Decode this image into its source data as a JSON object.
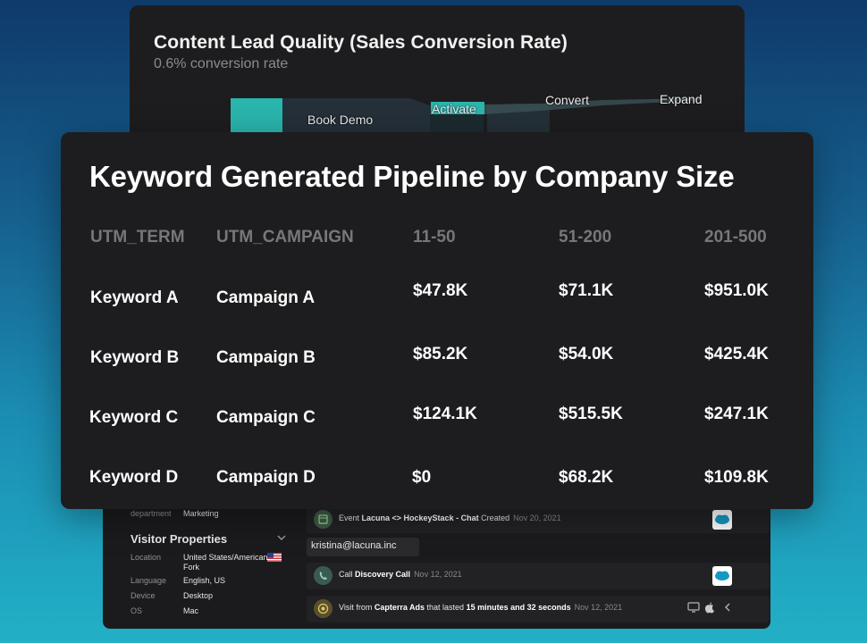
{
  "funnel_card": {
    "title": "Content Lead Quality (Sales Conversion Rate)",
    "subtitle": "0.6% conversion rate",
    "stages": [
      "Book Demo",
      "Activate",
      "Convert",
      "Expand"
    ],
    "accent_color": "#2ab5ad"
  },
  "table_card": {
    "title": "Keyword Generated Pipeline by Company Size",
    "columns": [
      "UTM_TERM",
      "UTM_CAMPAIGN",
      "11-50",
      "51-200",
      "201-500"
    ],
    "rows": [
      [
        "Keyword A",
        "Campaign A",
        "$47.8K",
        "$71.1K",
        "$951.0K"
      ],
      [
        "Keyword B",
        "Campaign B",
        "$85.2K",
        "$54.0K",
        "$425.4K"
      ],
      [
        "Keyword C",
        "Campaign C",
        "$124.1K",
        "$515.5K",
        "$247.1K"
      ],
      [
        "Keyword D",
        "Campaign D",
        "$0",
        "$68.2K",
        "$109.8K"
      ]
    ]
  },
  "activity_card": {
    "department": {
      "key": "department",
      "value": "Marketing"
    },
    "visitor_properties": {
      "title": "Visitor Properties",
      "items": [
        {
          "key": "Location",
          "value": "United States/American Fork"
        },
        {
          "key": "Language",
          "value": "English, US"
        },
        {
          "key": "Device",
          "value": "Desktop"
        },
        {
          "key": "OS",
          "value": "Mac"
        }
      ]
    },
    "email": "kristina@lacuna.inc",
    "events": [
      {
        "prefix": "Event ",
        "bold": "Lacuna <> HockeyStack - Chat",
        "suffix": " Created",
        "date": "Nov 20, 2021",
        "icon": "calendar-icon"
      },
      {
        "prefix": "Call ",
        "bold": "Discovery Call",
        "suffix": "",
        "date": "Nov 12, 2021",
        "icon": "phone-icon"
      },
      {
        "prefix": "Visit from ",
        "bold": "Capterra Ads",
        "middle": " that lasted ",
        "bold2": "15 minutes and 32 seconds",
        "suffix": "",
        "date": "Nov 12, 2021",
        "icon": "visit-icon"
      }
    ],
    "salesforce_color": "#1798c1"
  }
}
